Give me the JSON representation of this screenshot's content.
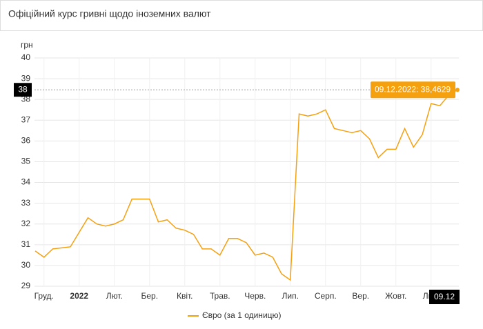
{
  "chart_data": {
    "type": "line",
    "title": "Офіційний курс гривні щодо іноземних валют",
    "y_label": "грн",
    "categories": [
      null,
      "Груд.",
      null,
      null,
      null,
      "2022",
      null,
      null,
      null,
      "Лют.",
      null,
      null,
      null,
      "Бер.",
      null,
      null,
      null,
      "Квіт.",
      null,
      null,
      null,
      "Трав.",
      null,
      null,
      null,
      "Черв.",
      null,
      null,
      null,
      "Лип.",
      null,
      null,
      null,
      "Серп.",
      null,
      null,
      null,
      "Вер.",
      null,
      null,
      null,
      "Жовт.",
      null,
      null,
      null,
      "Лис.",
      null,
      null,
      null
    ],
    "series": [
      {
        "name": "Євро (за 1 одиницю)",
        "color": "#f5a00f",
        "values": [
          30.7,
          30.4,
          30.8,
          30.85,
          30.9,
          31.6,
          32.3,
          32.0,
          31.9,
          32.0,
          32.2,
          33.2,
          33.2,
          33.2,
          32.1,
          32.2,
          31.8,
          31.7,
          31.5,
          30.8,
          30.8,
          30.5,
          31.3,
          31.3,
          31.1,
          30.5,
          30.6,
          30.4,
          29.6,
          29.3,
          37.3,
          37.2,
          37.3,
          37.5,
          36.6,
          36.5,
          36.4,
          36.5,
          36.1,
          35.2,
          35.6,
          35.6,
          36.6,
          35.7,
          36.3,
          37.8,
          37.7,
          38.2,
          38.4629
        ]
      }
    ],
    "ylim": [
      29,
      40
    ],
    "yticks": [
      29,
      30,
      31,
      32,
      33,
      34,
      35,
      36,
      37,
      38,
      39,
      40
    ],
    "grid": true,
    "crosshair": {
      "value": 38.4629,
      "y_label": "38",
      "x_label": "09.12",
      "tooltip": "09.12.2022: 38,4629"
    }
  }
}
